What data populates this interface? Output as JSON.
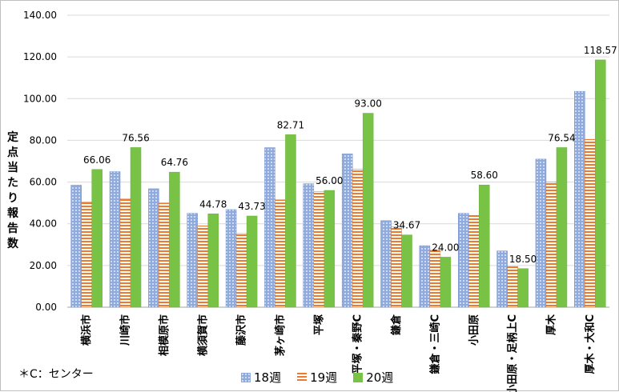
{
  "chart_data": {
    "type": "bar",
    "title": "",
    "ylabel": "定点当たり報告数",
    "ylim": [
      0,
      140
    ],
    "ytick_labels": [
      "0.00",
      "20.00",
      "40.00",
      "60.00",
      "80.00",
      "100.00",
      "120.00",
      "140.00"
    ],
    "grid": true,
    "legend_position": "bottom",
    "categories": [
      "横浜市",
      "川崎市",
      "相模原市",
      "横須賀市",
      "藤沢市",
      "茅ヶ崎市",
      "平塚",
      "平塚・秦野C",
      "鎌倉",
      "鎌倉・三崎C",
      "小田原",
      "小田原・足柄上C",
      "厚木",
      "厚木・大和C"
    ],
    "series": [
      {
        "name": "18週",
        "color": "#4f81bd",
        "values": [
          58.5,
          65.0,
          56.8,
          45.0,
          46.8,
          76.5,
          59.2,
          73.5,
          41.5,
          29.5,
          45.0,
          27.0,
          71.0,
          103.5
        ]
      },
      {
        "name": "19週",
        "color": "#f07a2c",
        "values": [
          50.5,
          52.0,
          50.0,
          39.0,
          35.3,
          51.5,
          55.5,
          66.2,
          38.5,
          27.5,
          44.0,
          19.5,
          60.0,
          80.5
        ]
      },
      {
        "name": "20週",
        "color": "#78c346",
        "values": [
          66.06,
          76.56,
          64.76,
          44.78,
          43.73,
          82.71,
          56.0,
          93.0,
          34.67,
          24.0,
          58.6,
          18.5,
          76.54,
          118.57
        ],
        "labels": [
          "66.06",
          "76.56",
          "64.76",
          "44.78",
          "43.73",
          "82.71",
          "56.00",
          "93.00",
          "34.67",
          "24.00",
          "58.60",
          "18.50",
          "76.54",
          "118.57"
        ]
      }
    ]
  },
  "note": "＊C：センター"
}
